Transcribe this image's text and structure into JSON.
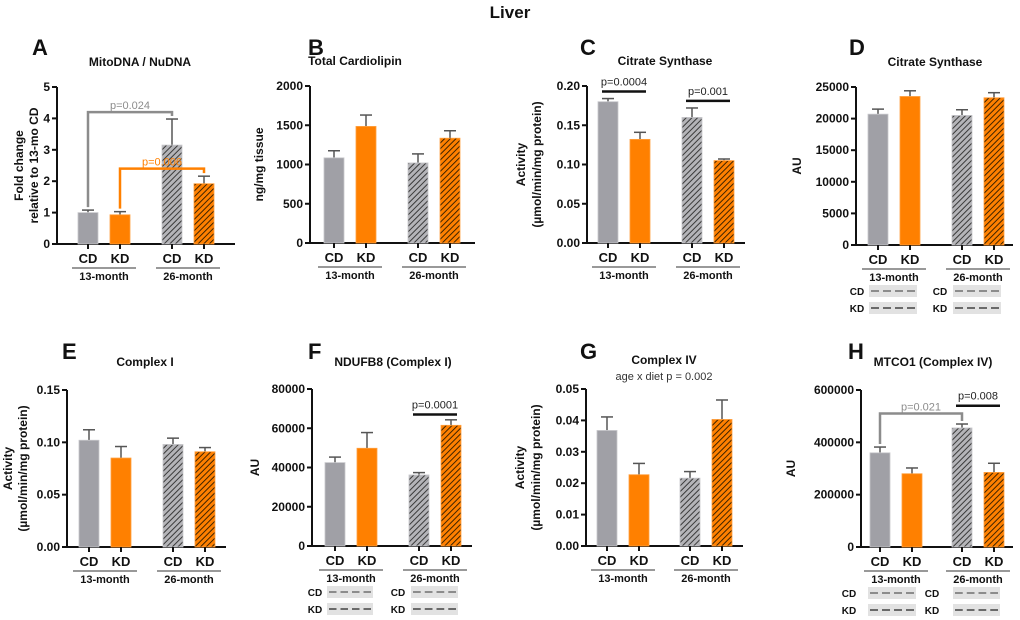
{
  "figure_title": "Liver",
  "colors": {
    "gray": "#a0a0a6",
    "orange": "#ff8000",
    "axis": "#111111",
    "gray_text": "#8c8c8c",
    "hatch": "#333333"
  },
  "chart_data": [
    {
      "panel": "A",
      "type": "bar",
      "title": "MitoDNA / NuDNA",
      "subtitle": null,
      "ylabel": [
        "Fold change",
        "relative to 13-mo CD"
      ],
      "ylim": [
        0,
        5
      ],
      "yticks": [
        "0",
        "1",
        "2",
        "3",
        "4",
        "5"
      ],
      "categories": [
        "CD",
        "KD",
        "CD",
        "KD"
      ],
      "groups": [
        "13-month",
        "26-month"
      ],
      "fills": [
        "gray",
        "orange",
        "gray-hatched",
        "orange-hatched"
      ],
      "values": [
        1.0,
        0.93,
        3.15,
        1.92
      ],
      "errors": [
        0.08,
        0.1,
        0.83,
        0.24
      ],
      "comparisons": [
        {
          "from": 0,
          "to": 2,
          "y": 4.2,
          "label": "p=0.024",
          "color": "#8c8c8c",
          "style": "bracket"
        },
        {
          "from": 1,
          "to": 3,
          "y": 2.4,
          "label": "p=0.006",
          "color": "#ff8000",
          "style": "bracket"
        }
      ],
      "blot": null
    },
    {
      "panel": "B",
      "type": "bar",
      "title": "Total Cardiolipin",
      "subtitle": null,
      "ylabel": [
        "ng/mg tissue"
      ],
      "ylim": [
        0,
        2000
      ],
      "yticks": [
        "0",
        "500",
        "1000",
        "1500",
        "2000"
      ],
      "categories": [
        "CD",
        "KD",
        "CD",
        "KD"
      ],
      "groups": [
        "13-month",
        "26-month"
      ],
      "fills": [
        "gray",
        "orange",
        "gray-hatched",
        "orange-hatched"
      ],
      "values": [
        1085,
        1485,
        1020,
        1335
      ],
      "errors": [
        90,
        145,
        115,
        95
      ],
      "comparisons": [],
      "blot": null
    },
    {
      "panel": "C",
      "type": "bar",
      "title": "Citrate Synthase",
      "subtitle": null,
      "ylabel": [
        "Activity",
        "(µmol/min/mg protein)"
      ],
      "ylim": [
        0,
        0.2
      ],
      "yticks": [
        "0.00",
        "0.05",
        "0.10",
        "0.15",
        "0.20"
      ],
      "categories": [
        "CD",
        "KD",
        "CD",
        "KD"
      ],
      "groups": [
        "13-month",
        "26-month"
      ],
      "fills": [
        "gray",
        "orange",
        "gray-hatched",
        "orange-hatched"
      ],
      "values": [
        0.18,
        0.132,
        0.16,
        0.105
      ],
      "errors": [
        0.004,
        0.009,
        0.012,
        0.002
      ],
      "comparisons": [
        {
          "from": 0,
          "to": 1,
          "y": 0.193,
          "label": "p=0.0004",
          "color": "#111111",
          "style": "line"
        },
        {
          "from": 2,
          "to": 3,
          "y": 0.181,
          "label": "p=0.001",
          "color": "#111111",
          "style": "line"
        }
      ],
      "blot": null
    },
    {
      "panel": "D",
      "type": "bar",
      "title": "Citrate Synthase",
      "subtitle": null,
      "ylabel": [
        "AU"
      ],
      "ylim": [
        0,
        25000
      ],
      "yticks": [
        "0",
        "5000",
        "10000",
        "15000",
        "20000",
        "25000"
      ],
      "categories": [
        "CD",
        "KD",
        "CD",
        "KD"
      ],
      "groups": [
        "13-month",
        "26-month"
      ],
      "fills": [
        "gray",
        "orange",
        "gray-hatched",
        "orange-hatched"
      ],
      "values": [
        20700,
        23500,
        20500,
        23300
      ],
      "errors": [
        800,
        900,
        900,
        800
      ],
      "comparisons": [],
      "blot": {
        "rows": [
          "CD",
          "KD"
        ]
      }
    },
    {
      "panel": "E",
      "type": "bar",
      "title": "Complex I",
      "subtitle": null,
      "ylabel": [
        "Activity",
        "(µmol/min/mg protein)"
      ],
      "ylim": [
        0,
        0.15
      ],
      "yticks": [
        "0.00",
        "0.05",
        "0.10",
        "0.15"
      ],
      "categories": [
        "CD",
        "KD",
        "CD",
        "KD"
      ],
      "groups": [
        "13-month",
        "26-month"
      ],
      "fills": [
        "gray",
        "orange",
        "gray-hatched",
        "orange-hatched"
      ],
      "values": [
        0.102,
        0.085,
        0.098,
        0.091
      ],
      "errors": [
        0.01,
        0.011,
        0.006,
        0.004
      ],
      "comparisons": [],
      "blot": null
    },
    {
      "panel": "F",
      "type": "bar",
      "title": "NDUFB8 (Complex I)",
      "subtitle": null,
      "ylabel": [
        "AU"
      ],
      "ylim": [
        0,
        80000
      ],
      "yticks": [
        "0",
        "20000",
        "40000",
        "60000",
        "80000"
      ],
      "categories": [
        "CD",
        "KD",
        "CD",
        "KD"
      ],
      "groups": [
        "13-month",
        "26-month"
      ],
      "fills": [
        "gray",
        "orange",
        "gray-hatched",
        "orange-hatched"
      ],
      "values": [
        42500,
        49800,
        36200,
        61500
      ],
      "errors": [
        2800,
        8000,
        1200,
        2800
      ],
      "comparisons": [
        {
          "from": 2,
          "to": 3,
          "y": 67000,
          "label": "p=0.0001",
          "color": "#111111",
          "style": "line"
        }
      ],
      "blot": {
        "rows": [
          "CD",
          "KD"
        ]
      }
    },
    {
      "panel": "G",
      "type": "bar",
      "title": "Complex IV",
      "subtitle": "age x diet p = 0.002",
      "ylabel": [
        "Activity",
        "(µmol/min/mg protein)"
      ],
      "ylim": [
        0,
        0.05
      ],
      "yticks": [
        "0.00",
        "0.01",
        "0.02",
        "0.03",
        "0.04",
        "0.05"
      ],
      "categories": [
        "CD",
        "KD",
        "CD",
        "KD"
      ],
      "groups": [
        "13-month",
        "26-month"
      ],
      "fills": [
        "gray",
        "orange",
        "gray-hatched",
        "orange-hatched"
      ],
      "values": [
        0.0368,
        0.0227,
        0.0216,
        0.0403
      ],
      "errors": [
        0.0043,
        0.0036,
        0.0021,
        0.0062
      ],
      "comparisons": [],
      "blot": null
    },
    {
      "panel": "H",
      "type": "bar",
      "title": "MTCO1 (Complex IV)",
      "subtitle": null,
      "ylabel": [
        "AU"
      ],
      "ylim": [
        0,
        600000
      ],
      "yticks": [
        "0",
        "200000",
        "400000",
        "600000"
      ],
      "categories": [
        "CD",
        "KD",
        "CD",
        "KD"
      ],
      "groups": [
        "13-month",
        "26-month"
      ],
      "fills": [
        "gray",
        "orange",
        "gray-hatched",
        "orange-hatched"
      ],
      "values": [
        360000,
        280000,
        455000,
        285000
      ],
      "errors": [
        22000,
        22000,
        15000,
        35000
      ],
      "comparisons": [
        {
          "from": 0,
          "to": 2,
          "y": 510000,
          "label": "p=0.021",
          "color": "#8c8c8c",
          "style": "bracket"
        },
        {
          "from": 2,
          "to": 3,
          "y": 540000,
          "label": "p=0.008",
          "color": "#111111",
          "style": "line"
        }
      ],
      "blot": {
        "rows": [
          "CD",
          "KD"
        ]
      }
    }
  ]
}
